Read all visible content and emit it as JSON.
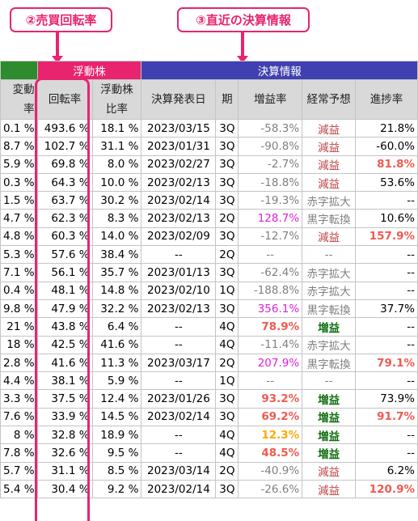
{
  "callouts": {
    "turnover": "②売買回転率",
    "earnings": "③直近の決算情報"
  },
  "groups": {
    "float": "浮動株",
    "earnings": "決算情報"
  },
  "headers": {
    "change_rate": "変動率",
    "turnover": "回転率",
    "float_ratio": "浮動株比率",
    "announce_date": "決算発表日",
    "period": "期",
    "profit_growth": "増益率",
    "forecast": "経常予想",
    "progress": "進捗率"
  },
  "rows": [
    {
      "change": "0.1 %",
      "turnover": "493.6 %",
      "float": "18.1 %",
      "date": "2023/03/15",
      "period": "3Q",
      "growth": "-58.3%",
      "forecast": "減益",
      "progress": "21.8%"
    },
    {
      "change": "8.7 %",
      "turnover": "102.7 %",
      "float": "31.1 %",
      "date": "2023/01/31",
      "period": "3Q",
      "growth": "-90.8%",
      "forecast": "減益",
      "progress": "-60.0%"
    },
    {
      "change": "5.9 %",
      "turnover": "69.8 %",
      "float": "8.0 %",
      "date": "2023/02/27",
      "period": "3Q",
      "growth": "-2.7%",
      "forecast": "減益",
      "progress": "81.8%"
    },
    {
      "change": "0.3 %",
      "turnover": "64.3 %",
      "float": "10.0 %",
      "date": "2023/02/13",
      "period": "3Q",
      "growth": "-18.8%",
      "forecast": "減益",
      "progress": "53.6%"
    },
    {
      "change": "1.5 %",
      "turnover": "63.7 %",
      "float": "30.2 %",
      "date": "2023/02/14",
      "period": "3Q",
      "growth": "-19.3%",
      "forecast": "赤字拡大",
      "progress": "--"
    },
    {
      "change": "4.7 %",
      "turnover": "62.3 %",
      "float": "8.3 %",
      "date": "2023/02/13",
      "period": "2Q",
      "growth": "128.7%",
      "forecast": "黒字転換",
      "progress": "10.6%"
    },
    {
      "change": "4.8 %",
      "turnover": "60.3 %",
      "float": "14.0 %",
      "date": "2023/02/09",
      "period": "3Q",
      "growth": "-12.7%",
      "forecast": "減益",
      "progress": "157.9%"
    },
    {
      "change": "5.3 %",
      "turnover": "57.6 %",
      "float": "38.4 %",
      "date": "--",
      "period": "2Q",
      "growth": "--",
      "forecast": "--",
      "progress": "--"
    },
    {
      "change": "7.1 %",
      "turnover": "56.1 %",
      "float": "35.7 %",
      "date": "2023/01/13",
      "period": "3Q",
      "growth": "-62.4%",
      "forecast": "赤字拡大",
      "progress": "--"
    },
    {
      "change": "0.4 %",
      "turnover": "48.1 %",
      "float": "14.8 %",
      "date": "2023/02/10",
      "period": "1Q",
      "growth": "-188.8%",
      "forecast": "赤字拡大",
      "progress": "--"
    },
    {
      "change": "9.8 %",
      "turnover": "47.9 %",
      "float": "32.2 %",
      "date": "2023/02/13",
      "period": "3Q",
      "growth": "356.1%",
      "forecast": "黒字転換",
      "progress": "37.7%"
    },
    {
      "change": "21 %",
      "turnover": "43.8 %",
      "float": "6.4 %",
      "date": "--",
      "period": "4Q",
      "growth": "78.9%",
      "forecast": "増益",
      "progress": "--"
    },
    {
      "change": "18 %",
      "turnover": "42.5 %",
      "float": "41.6 %",
      "date": "--",
      "period": "4Q",
      "growth": "-11.4%",
      "forecast": "赤字拡大",
      "progress": "--"
    },
    {
      "change": "2.8 %",
      "turnover": "41.6 %",
      "float": "11.3 %",
      "date": "2023/03/17",
      "period": "2Q",
      "growth": "207.9%",
      "forecast": "黒字転換",
      "progress": "79.1%"
    },
    {
      "change": "4.4 %",
      "turnover": "38.1 %",
      "float": "5.9 %",
      "date": "--",
      "period": "1Q",
      "growth": "--",
      "forecast": "--",
      "progress": "--"
    },
    {
      "change": "3.3 %",
      "turnover": "37.5 %",
      "float": "12.4 %",
      "date": "2023/01/26",
      "period": "3Q",
      "growth": "93.2%",
      "forecast": "増益",
      "progress": "73.9%"
    },
    {
      "change": "7.6 %",
      "turnover": "33.9 %",
      "float": "14.5 %",
      "date": "2023/02/14",
      "period": "3Q",
      "growth": "69.2%",
      "forecast": "増益",
      "progress": "91.7%"
    },
    {
      "change": "8 %",
      "turnover": "32.8 %",
      "float": "18.9 %",
      "date": "--",
      "period": "4Q",
      "growth": "12.3%",
      "forecast": "増益",
      "progress": "--"
    },
    {
      "change": "7.8 %",
      "turnover": "32.6 %",
      "float": "9.5 %",
      "date": "--",
      "period": "4Q",
      "growth": "48.5%",
      "forecast": "増益",
      "progress": "--"
    },
    {
      "change": "5.7 %",
      "turnover": "31.1 %",
      "float": "8.5 %",
      "date": "2023/03/14",
      "period": "2Q",
      "growth": "-40.9%",
      "forecast": "減益",
      "progress": "6.2%"
    },
    {
      "change": "5.4 %",
      "turnover": "30.4 %",
      "float": "9.2 %",
      "date": "2023/02/14",
      "period": "3Q",
      "growth": "-26.6%",
      "forecast": "減益",
      "progress": "120.9%"
    }
  ],
  "colors": {
    "callout_pink": "#e8246f",
    "group_green": "#2e8b2e",
    "group_blue": "#4040b0",
    "header_gray": "#d9d9d9",
    "negative_gray": "#808080",
    "positive_magenta": "#e020e0",
    "highlight_red": "#f05a50",
    "highlight_orange": "#ffaa00",
    "increase_green": "#107010",
    "decrease_brown": "#c04040"
  }
}
